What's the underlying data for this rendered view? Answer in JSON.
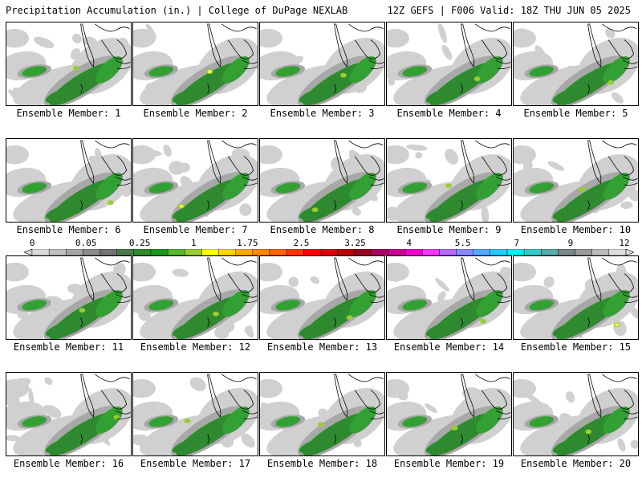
{
  "header": {
    "title_left": "Precipitation Accumulation (in.) | College of DuPage NEXLAB",
    "title_right": "12Z GEFS | F006 Valid: 18Z THU JUN 05 2025"
  },
  "panels": [
    {
      "label": "Ensemble Member: 1"
    },
    {
      "label": "Ensemble Member: 2"
    },
    {
      "label": "Ensemble Member: 3"
    },
    {
      "label": "Ensemble Member: 4"
    },
    {
      "label": "Ensemble Member: 5"
    },
    {
      "label": "Ensemble Member: 6"
    },
    {
      "label": "Ensemble Member: 7"
    },
    {
      "label": "Ensemble Member: 8"
    },
    {
      "label": "Ensemble Member: 9"
    },
    {
      "label": "Ensemble Member: 10"
    },
    {
      "label": "Ensemble Member: 11"
    },
    {
      "label": "Ensemble Member: 12"
    },
    {
      "label": "Ensemble Member: 13"
    },
    {
      "label": "Ensemble Member: 14"
    },
    {
      "label": "Ensemble Member: 15"
    },
    {
      "label": "Ensemble Member: 16"
    },
    {
      "label": "Ensemble Member: 17"
    },
    {
      "label": "Ensemble Member: 18"
    },
    {
      "label": "Ensemble Member: 19"
    },
    {
      "label": "Ensemble Member: 20"
    }
  ],
  "colorbar": {
    "labels": [
      "0",
      "0.05",
      "0.25",
      "1",
      "1.75",
      "2.5",
      "3.25",
      "4",
      "5.5",
      "7",
      "9",
      "12"
    ],
    "colors": [
      "#d9d9d9",
      "#bfbfbf",
      "#a6a6a6",
      "#8c8c8c",
      "#737373",
      "#4a7a4a",
      "#2e8b2e",
      "#1a991a",
      "#55b92a",
      "#99cc33",
      "#ffff00",
      "#ffd700",
      "#ffaa00",
      "#ff8800",
      "#ff6600",
      "#ff3300",
      "#ff0000",
      "#dd0000",
      "#bb0000",
      "#990022",
      "#aa0066",
      "#cc0099",
      "#ee00cc",
      "#ff33ff",
      "#bb66ff",
      "#8888ff",
      "#55aaff",
      "#22ccff",
      "#00eeee",
      "#33cccc",
      "#55aaaa",
      "#778888",
      "#999999",
      "#bbbbbb",
      "#dddddd"
    ],
    "outline": "#000000"
  },
  "map_colors": {
    "light_gray": "#d0d0d0",
    "mid_gray": "#a8a8a8",
    "dark_gray": "#7a7a7a",
    "green_dark": "#2f8a2f",
    "green": "#33a033",
    "yellow_green": "#9acd32",
    "yellow": "#ffff33",
    "background": "#ffffff"
  }
}
